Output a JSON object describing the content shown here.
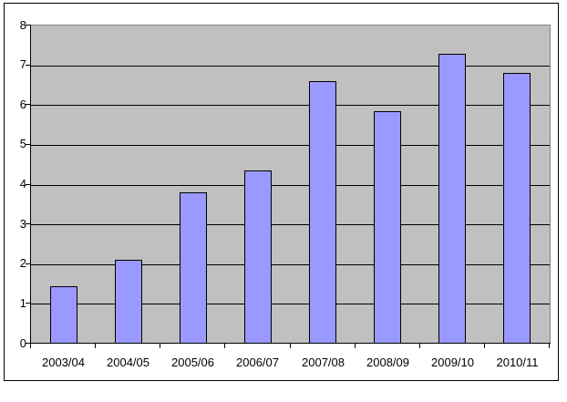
{
  "chart_data": {
    "type": "bar",
    "title": "",
    "xlabel": "",
    "ylabel": "",
    "categories": [
      "2003/04",
      "2004/05",
      "2005/06",
      "2006/07",
      "2007/08",
      "2008/09",
      "2009/10",
      "2010/11"
    ],
    "values": [
      1.45,
      2.1,
      3.8,
      4.35,
      6.6,
      5.85,
      7.3,
      6.8
    ],
    "ylim": [
      0,
      8
    ],
    "ytick_step": 1,
    "y_tick_labels": [
      "0",
      "1",
      "2",
      "3",
      "4",
      "5",
      "6",
      "7",
      "8"
    ],
    "grid": true,
    "legend": "none",
    "colors": {
      "bar_fill": "#9999FF",
      "bar_border": "#000000",
      "plot_background": "#C0C0C0",
      "gridline": "#000000",
      "axis": "#000000",
      "plot_border": "#848284",
      "chart_background": "#FFFFFF",
      "frame_border": "#000000"
    }
  }
}
